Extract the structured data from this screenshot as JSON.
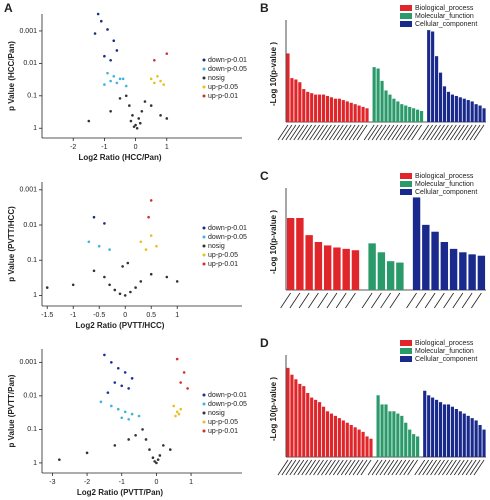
{
  "chart_data": [
    {
      "type": "scatter",
      "panel": "A",
      "xlabel": "Log2 Ratio (HCC/Pan)",
      "ylabel": "p Value (HCC/Pan)",
      "xlim": [
        -3,
        2
      ],
      "xticks": [
        -2,
        -1,
        0,
        1
      ],
      "ylim": [
        2,
        0.0003
      ],
      "yticks": [
        0.001,
        0.01,
        0.1,
        1
      ],
      "log_y": true,
      "legend": "right",
      "series": [
        {
          "name": "down-p-0.01",
          "color": "#1c2f7a",
          "x": [
            -1.2,
            -1.1,
            -0.9,
            -1.3,
            -0.7,
            -0.6,
            -1.0,
            -0.8
          ],
          "y": [
            0.0003,
            0.0005,
            0.0009,
            0.0012,
            0.002,
            0.004,
            0.006,
            0.008
          ]
        },
        {
          "name": "down-p-0.05",
          "color": "#3fb3de",
          "x": [
            -0.9,
            -0.7,
            -0.5,
            -0.8,
            -0.6,
            -0.4,
            -1.0,
            -0.3
          ],
          "y": [
            0.02,
            0.025,
            0.03,
            0.035,
            0.04,
            0.03,
            0.045,
            0.05
          ]
        },
        {
          "name": "nosig",
          "color": "#333333",
          "x": [
            -0.3,
            -0.2,
            -0.1,
            0,
            0.1,
            0.2,
            0.3,
            -0.5,
            0.5,
            -0.8,
            0.8,
            -0.15,
            0.15,
            0.05,
            -0.05,
            1.0,
            -1.5
          ],
          "y": [
            0.1,
            0.2,
            0.4,
            0.8,
            0.5,
            0.3,
            0.15,
            0.12,
            0.2,
            0.3,
            0.4,
            0.6,
            0.7,
            1,
            0.9,
            0.5,
            0.6
          ]
        },
        {
          "name": "up-p-0.05",
          "color": "#e8c020",
          "x": [
            0.5,
            0.6,
            0.7,
            0.8,
            0.9
          ],
          "y": [
            0.03,
            0.04,
            0.025,
            0.035,
            0.045
          ]
        },
        {
          "name": "up-p-0.01",
          "color": "#d03030",
          "x": [
            0.6,
            1.0
          ],
          "y": [
            0.008,
            0.005
          ]
        }
      ]
    },
    {
      "type": "scatter",
      "xlabel": "Log2 Ratio (PVTT/HCC)",
      "ylabel": "p Value (PVTT/HCC)",
      "xlim": [
        -1.6,
        1.4
      ],
      "xticks": [
        -1.5,
        -1,
        -0.5,
        0,
        0.5,
        1
      ],
      "ylim": [
        2,
        0.0006
      ],
      "yticks": [
        0.001,
        0.01,
        0.1,
        1
      ],
      "log_y": true,
      "legend": "right",
      "series": [
        {
          "name": "down-p-0.01",
          "color": "#1c2f7a",
          "x": [
            -0.6,
            -0.4
          ],
          "y": [
            0.006,
            0.009
          ]
        },
        {
          "name": "down-p-0.05",
          "color": "#3fb3de",
          "x": [
            -0.7,
            -0.5,
            -0.3
          ],
          "y": [
            0.03,
            0.04,
            0.05
          ]
        },
        {
          "name": "nosig",
          "color": "#333333",
          "x": [
            -0.4,
            -0.3,
            -0.2,
            -0.1,
            0,
            0.1,
            0.2,
            0.3,
            -0.6,
            0.5,
            -1.0,
            0.8,
            -1.5,
            1.0,
            -0.05,
            0.05
          ],
          "y": [
            0.3,
            0.5,
            0.7,
            0.9,
            1,
            0.8,
            0.6,
            0.4,
            0.2,
            0.25,
            0.5,
            0.3,
            0.6,
            0.4,
            0.15,
            0.12
          ]
        },
        {
          "name": "up-p-0.05",
          "color": "#e8c020",
          "x": [
            0.3,
            0.5,
            0.6,
            0.4
          ],
          "y": [
            0.03,
            0.02,
            0.04,
            0.05
          ]
        },
        {
          "name": "up-p-0.01",
          "color": "#d03030",
          "x": [
            0.5,
            0.45
          ],
          "y": [
            0.002,
            0.006
          ]
        }
      ]
    },
    {
      "type": "scatter",
      "xlabel": "Log2 Ratio (PVTT/Pan)",
      "ylabel": "p Value (PVTT/Pan)",
      "xlim": [
        -3.3,
        1.2
      ],
      "xticks": [
        -3,
        -2,
        -1,
        0,
        1
      ],
      "ylim": [
        2,
        0.0004
      ],
      "yticks": [
        0.001,
        0.01,
        0.1,
        1
      ],
      "log_y": true,
      "legend": "right",
      "series": [
        {
          "name": "down-p-0.01",
          "color": "#1c2f9a",
          "x": [
            -1.5,
            -1.3,
            -1.1,
            -0.9,
            -0.7,
            -1.2,
            -1.0,
            -0.8,
            -1.4
          ],
          "y": [
            0.0006,
            0.001,
            0.0015,
            0.002,
            0.003,
            0.004,
            0.005,
            0.006,
            0.008
          ]
        },
        {
          "name": "down-p-0.05",
          "color": "#3fb3de",
          "x": [
            -1.6,
            -1.3,
            -1.1,
            -0.9,
            -0.7,
            -0.5,
            -1.0,
            -0.8
          ],
          "y": [
            0.015,
            0.02,
            0.025,
            0.03,
            0.035,
            0.04,
            0.045,
            0.05
          ]
        },
        {
          "name": "nosig",
          "color": "#333333",
          "x": [
            -0.4,
            -0.3,
            -0.2,
            -0.1,
            0,
            0.1,
            0.2,
            -0.6,
            -0.8,
            -1.2,
            -2.0,
            -2.8,
            0.4,
            -0.05,
            0.05
          ],
          "y": [
            0.1,
            0.2,
            0.4,
            0.7,
            1,
            0.6,
            0.3,
            0.15,
            0.2,
            0.3,
            0.5,
            0.8,
            0.4,
            0.9,
            0.8
          ]
        },
        {
          "name": "up-p-0.05",
          "color": "#e8c020",
          "x": [
            0.5,
            0.6,
            0.7,
            0.55,
            0.65
          ],
          "y": [
            0.02,
            0.03,
            0.025,
            0.04,
            0.035
          ]
        },
        {
          "name": "up-p-0.01",
          "color": "#d03030",
          "x": [
            0.6,
            0.8,
            0.7,
            0.9
          ],
          "y": [
            0.0008,
            0.002,
            0.004,
            0.006
          ]
        }
      ]
    },
    {
      "type": "bar",
      "panel": "B",
      "ylabel": "-Log 10(p-value )",
      "ylim": [
        0,
        3.5
      ],
      "legend": "top-right",
      "series": [
        {
          "name": "Biological_process",
          "color": "#e0262b",
          "values": [
            2.5,
            1.6,
            1.55,
            1.45,
            1.2,
            1.1,
            1.05,
            1.0,
            1.0,
            1.0,
            0.95,
            0.9,
            0.85,
            0.85,
            0.8,
            0.75,
            0.7,
            0.65,
            0.6,
            0.55,
            0.5
          ]
        },
        {
          "name": "Molecular_function",
          "color": "#2a9a6a",
          "values": [
            2.0,
            1.95,
            1.5,
            1.15,
            1.0,
            0.85,
            0.75,
            0.65,
            0.6,
            0.55,
            0.5,
            0.45,
            0.4
          ]
        },
        {
          "name": "Cellular_component",
          "color": "#1a2a8c",
          "values": [
            3.35,
            3.3,
            2.4,
            1.8,
            1.3,
            1.1,
            1.0,
            0.95,
            0.9,
            0.85,
            0.8,
            0.75,
            0.65,
            0.6,
            0.5
          ]
        }
      ]
    },
    {
      "type": "bar",
      "panel": "C",
      "ylabel": "-Log 10(p-value )",
      "ylim": [
        0,
        1.4
      ],
      "legend": "top-right",
      "series": [
        {
          "name": "Biological_process",
          "color": "#e0262b",
          "values": [
            1.05,
            1.05,
            0.8,
            0.7,
            0.65,
            0.62,
            0.6,
            0.58
          ]
        },
        {
          "name": "Molecular_function",
          "color": "#2a9a6a",
          "values": [
            0.68,
            0.55,
            0.42,
            0.4
          ]
        },
        {
          "name": "Cellular_component",
          "color": "#1a2a8c",
          "values": [
            1.35,
            0.95,
            0.85,
            0.7,
            0.6,
            0.55,
            0.52,
            0.5
          ]
        }
      ]
    },
    {
      "type": "bar",
      "panel": "D",
      "ylabel": "-Log 10(p-value )",
      "ylim": [
        0,
        2.1
      ],
      "legend": "top-right",
      "series": [
        {
          "name": "Biological_process",
          "color": "#e0262b",
          "values": [
            1.95,
            1.8,
            1.7,
            1.6,
            1.55,
            1.4,
            1.3,
            1.25,
            1.2,
            1.1,
            1.0,
            0.95,
            0.9,
            0.85,
            0.8,
            0.75,
            0.7,
            0.65,
            0.6,
            0.55,
            0.45,
            0.4
          ]
        },
        {
          "name": "Molecular_function",
          "color": "#2a9a6a",
          "values": [
            1.35,
            1.15,
            1.15,
            1.0,
            1.0,
            0.95,
            0.9,
            0.75,
            0.6,
            0.5,
            0.45
          ]
        },
        {
          "name": "Cellular_component",
          "color": "#1a2a8c",
          "values": [
            1.45,
            1.35,
            1.3,
            1.25,
            1.2,
            1.15,
            1.15,
            1.1,
            1.05,
            1.0,
            0.95,
            0.9,
            0.85,
            0.8,
            0.7,
            0.6
          ]
        }
      ]
    }
  ]
}
